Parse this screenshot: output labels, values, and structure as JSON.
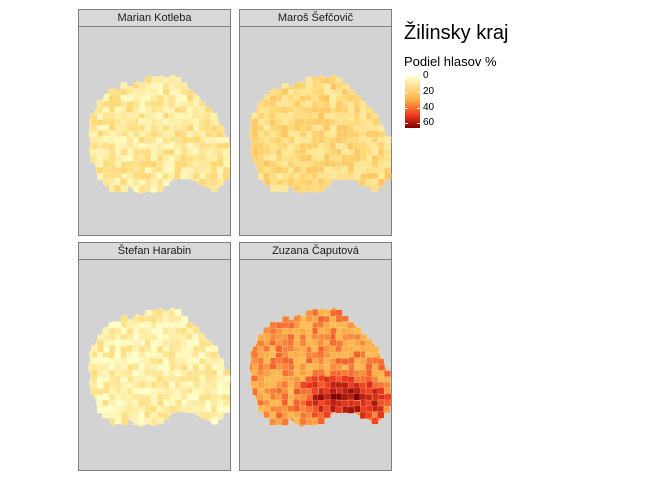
{
  "legend": {
    "title": "Žilinsky kraj",
    "subtitle": "Podiel hlasov %",
    "ticks": [
      "0",
      "20",
      "40",
      "60"
    ],
    "tick_values": [
      0,
      20,
      40,
      60
    ],
    "range": [
      0,
      66
    ],
    "scale_colors": [
      "#ffffcc",
      "#feb24c",
      "#f03b20",
      "#7f0000"
    ]
  },
  "panels": [
    {
      "name": "Marian Kotleba",
      "tint": "#fde9a0",
      "level": 0.15
    },
    {
      "name": "Maroš Šefčovič",
      "tint": "#fbd27a",
      "level": 0.25
    },
    {
      "name": "Štefan Harabin",
      "tint": "#fef0b0",
      "level": 0.1
    },
    {
      "name": "Zuzana Čaputová",
      "tint": "#f6933a",
      "level": 0.55
    }
  ]
}
